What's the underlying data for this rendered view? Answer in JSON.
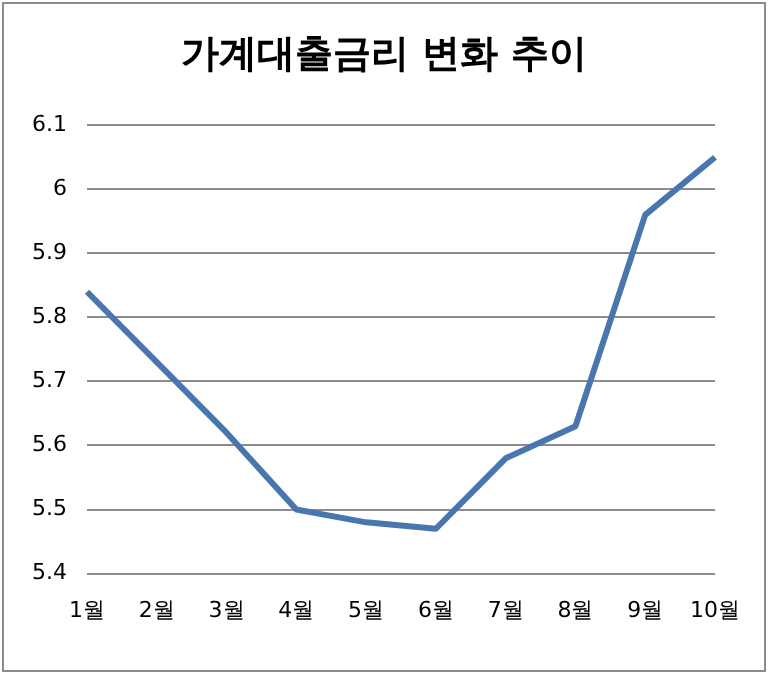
{
  "chart_data": {
    "type": "line",
    "title": "가계대출금리 변화 추이",
    "categories": [
      "1월",
      "2월",
      "3월",
      "4월",
      "5월",
      "6월",
      "7월",
      "8월",
      "9월",
      "10월"
    ],
    "series": [
      {
        "color": "#4a76b0",
        "values": [
          5.84,
          5.73,
          5.62,
          5.5,
          5.48,
          5.47,
          5.58,
          5.63,
          5.96,
          6.05
        ]
      }
    ],
    "ylim": [
      5.4,
      6.1
    ],
    "yticks": [
      5.4,
      5.5,
      5.6,
      5.7,
      5.8,
      5.9,
      6,
      6.1
    ],
    "grid": "y",
    "legend": false,
    "marker": "none",
    "line_style": "solid"
  }
}
